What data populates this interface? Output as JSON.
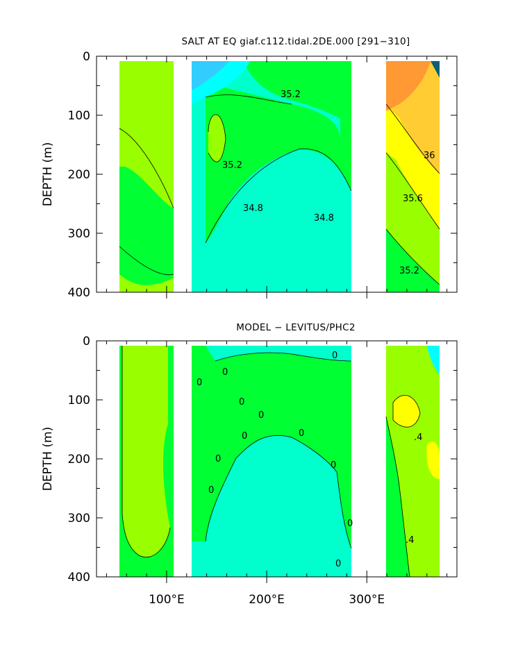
{
  "chart_data": [
    {
      "type": "heatmap",
      "title": "SALT AT EQ giaf.c112.tidal.2DE.000 [291−310]",
      "xlabel": "",
      "ylabel": "DEPTH (m)",
      "xlim": [
        30,
        390
      ],
      "ylim": [
        400,
        0
      ],
      "yticks": [
        "0",
        "100",
        "200",
        "300",
        "400"
      ],
      "xticks": [],
      "contour_labels": [
        "35.2",
        "35.2",
        "34.8",
        "34.8",
        "36",
        "35.6",
        "35.2"
      ],
      "colors": {
        "darkest": "#0b5f78",
        "cyan": "#00ffff",
        "turquoise": "#00ffcc",
        "green": "#00ff33",
        "lime": "#99ff00",
        "yellow": "#ffff00",
        "gold": "#ffcc33",
        "orange": "#ff9933"
      }
    },
    {
      "type": "heatmap",
      "title": "MODEL − LEVITUS/PHC2",
      "xlabel": "",
      "ylabel": "DEPTH (m)",
      "xlim": [
        30,
        390
      ],
      "ylim": [
        400,
        0
      ],
      "yticks": [
        "0",
        "100",
        "200",
        "300",
        "400"
      ],
      "xticks": [
        "100°E",
        "200°E",
        "300°E"
      ],
      "contour_labels": [
        "0",
        "0",
        "0",
        "0",
        "0",
        "0",
        "0",
        "0",
        "0",
        "0",
        "0",
        "0",
        ".4",
        ".4"
      ]
    }
  ]
}
